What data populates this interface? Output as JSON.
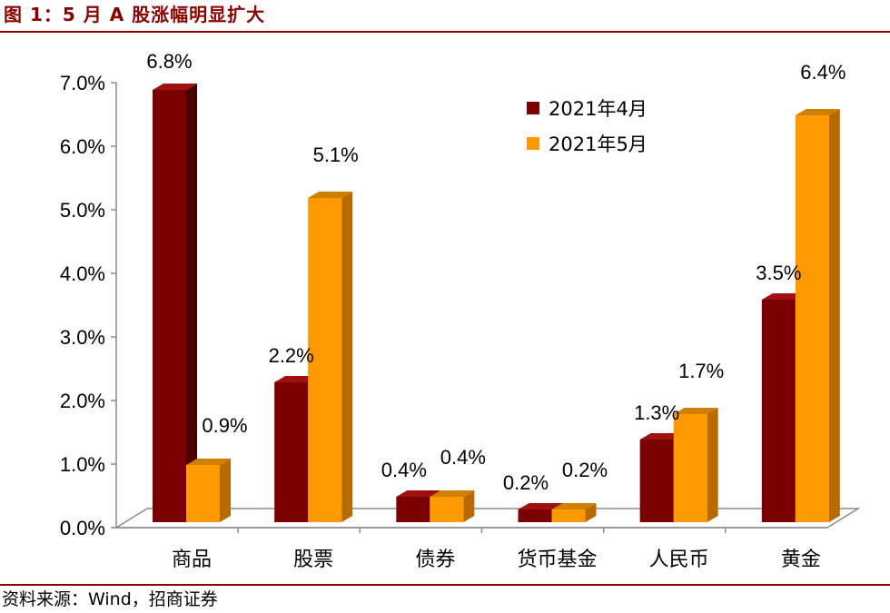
{
  "title": "图 1：5 月 A 股涨幅明显扩大",
  "source": "资料来源：Wind，招商证券",
  "colors": {
    "series1_front": "#7B0000",
    "series1_side": "#4A0000",
    "series1_top": "#A01010",
    "series2_front": "#FF9900",
    "series2_side": "#B86A00",
    "series2_top": "#D08000",
    "accent": "#8B0000"
  },
  "chart_data": {
    "type": "bar",
    "categories": [
      "商品",
      "股票",
      "债券",
      "货币基金",
      "人民币",
      "黄金"
    ],
    "series": [
      {
        "name": "2021年4月",
        "values": [
          6.8,
          2.2,
          0.4,
          0.2,
          1.3,
          3.5
        ],
        "labels": [
          "6.8%",
          "2.2%",
          "0.4%",
          "0.2%",
          "1.3%",
          "3.5%"
        ]
      },
      {
        "name": "2021年5月",
        "values": [
          0.9,
          5.1,
          0.4,
          0.2,
          1.7,
          6.4
        ],
        "labels": [
          "0.9%",
          "5.1%",
          "0.4%",
          "0.2%",
          "1.7%",
          "6.4%"
        ]
      }
    ],
    "ylim": [
      0,
      7
    ],
    "yticks": [
      {
        "value": 0,
        "label": "0.0%"
      },
      {
        "value": 1,
        "label": "1.0%"
      },
      {
        "value": 2,
        "label": "2.0%"
      },
      {
        "value": 3,
        "label": "3.0%"
      },
      {
        "value": 4,
        "label": "4.0%"
      },
      {
        "value": 5,
        "label": "5.0%"
      },
      {
        "value": 6,
        "label": "6.0%"
      },
      {
        "value": 7,
        "label": "7.0%"
      }
    ],
    "xlabel": "",
    "ylabel": "",
    "grid": false,
    "legend_position": "top-right",
    "style": "3d"
  }
}
